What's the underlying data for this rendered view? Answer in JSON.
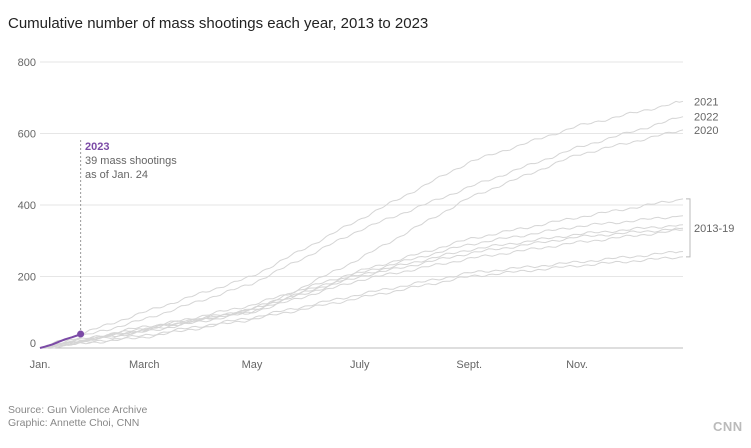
{
  "title": "Cumulative number of mass shootings each year, 2013 to 2023",
  "source_line": "Source: Gun Violence Archive",
  "graphic_line": "Graphic: Annette Choi, CNN",
  "logo": "CNN",
  "colors": {
    "highlight": "#7b4aa6",
    "past_years": "#d5d5d5",
    "grid": "#e6e6e6"
  },
  "annotation": {
    "heading": "2023",
    "line1": "39 mass shootings",
    "line2": "as of Jan. 24"
  },
  "chart_data": {
    "type": "line",
    "x_unit": "day of year",
    "xlim": [
      1,
      365
    ],
    "ylim": [
      0,
      800
    ],
    "grid": true,
    "x_ticks": [
      {
        "label": "Jan.",
        "day": 1
      },
      {
        "label": "March",
        "day": 60
      },
      {
        "label": "May",
        "day": 121
      },
      {
        "label": "July",
        "day": 182
      },
      {
        "label": "Sept.",
        "day": 244
      },
      {
        "label": "Nov.",
        "day": 305
      }
    ],
    "y_ticks": [
      0,
      200,
      400,
      600,
      800
    ],
    "series": [
      {
        "name": "2021",
        "label": "2021",
        "highlight": false,
        "x": [
          1,
          60,
          121,
          182,
          244,
          305,
          365
        ],
        "y": [
          0,
          100,
          200,
          360,
          520,
          620,
          690
        ]
      },
      {
        "name": "2022",
        "label": "2022",
        "highlight": false,
        "x": [
          1,
          60,
          121,
          182,
          244,
          305,
          365
        ],
        "y": [
          0,
          80,
          180,
          330,
          450,
          560,
          647
        ]
      },
      {
        "name": "2020",
        "label": "2020",
        "highlight": false,
        "x": [
          1,
          60,
          121,
          182,
          244,
          305,
          365
        ],
        "y": [
          0,
          60,
          100,
          250,
          420,
          540,
          610
        ]
      },
      {
        "name": "2019",
        "label": "",
        "highlight": false,
        "x": [
          1,
          60,
          121,
          182,
          244,
          305,
          365
        ],
        "y": [
          0,
          55,
          120,
          215,
          305,
          365,
          417
        ]
      },
      {
        "name": "2018",
        "label": "",
        "highlight": false,
        "x": [
          1,
          60,
          121,
          182,
          244,
          305,
          365
        ],
        "y": [
          0,
          50,
          110,
          210,
          290,
          340,
          370
        ]
      },
      {
        "name": "2017",
        "label": "",
        "highlight": false,
        "x": [
          1,
          60,
          121,
          182,
          244,
          305,
          365
        ],
        "y": [
          0,
          52,
          108,
          205,
          275,
          318,
          345
        ]
      },
      {
        "name": "2016",
        "label": "",
        "highlight": false,
        "x": [
          1,
          60,
          121,
          182,
          244,
          305,
          365
        ],
        "y": [
          0,
          48,
          105,
          200,
          265,
          310,
          335
        ]
      },
      {
        "name": "2015",
        "label": "",
        "highlight": false,
        "x": [
          1,
          60,
          121,
          182,
          244,
          305,
          365
        ],
        "y": [
          0,
          45,
          100,
          190,
          250,
          295,
          330
        ]
      },
      {
        "name": "2014",
        "label": "",
        "highlight": false,
        "x": [
          1,
          60,
          121,
          182,
          244,
          305,
          365
        ],
        "y": [
          0,
          35,
          85,
          150,
          210,
          240,
          270
        ]
      },
      {
        "name": "2013",
        "label": "",
        "highlight": false,
        "x": [
          1,
          60,
          121,
          182,
          244,
          305,
          365
        ],
        "y": [
          0,
          30,
          80,
          140,
          200,
          230,
          255
        ]
      },
      {
        "name": "2023",
        "label": "",
        "highlight": true,
        "x": [
          1,
          4,
          8,
          12,
          15,
          19,
          22,
          24
        ],
        "y": [
          0,
          4,
          10,
          18,
          24,
          30,
          35,
          39
        ]
      }
    ],
    "group_label": "2013-19"
  }
}
